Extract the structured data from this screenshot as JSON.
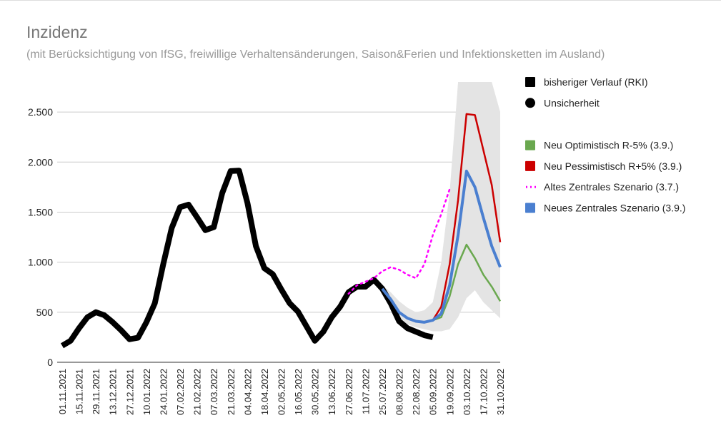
{
  "chart_data": {
    "type": "line",
    "title": "Inzidenz",
    "subtitle": "(mit Berücksichtigung von IfSG, freiwillige Verhaltensänderungen, Saison&Ferien und Infektionsketten im Ausland)",
    "categories": [
      "01.11.2021",
      null,
      "15.11.2021",
      null,
      "29.11.2021",
      null,
      "13.12.2021",
      null,
      "27.12.2021",
      null,
      "10.01.2022",
      null,
      "24.01.2022",
      null,
      "07.02.2022",
      null,
      "21.02.2022",
      null,
      "07.03.2022",
      null,
      "21.03.2022",
      null,
      "04.04.2022",
      null,
      "18.04.2022",
      null,
      "02.05.2022",
      null,
      "16.05.2022",
      null,
      "30.05.2022",
      null,
      "13.06.2022",
      null,
      "27.06.2022",
      null,
      "11.07.2022",
      null,
      "25.07.2022",
      null,
      "08.08.2022",
      null,
      "22.08.2022",
      null,
      "05.09.2022",
      null,
      "19.09.2022",
      null,
      "03.10.2022",
      null,
      "17.10.2022",
      null,
      "31.10.2022"
    ],
    "ylim": [
      0,
      2800
    ],
    "yticks": [
      0,
      500,
      {
        "value": 1000,
        "label": "1.000"
      },
      {
        "value": 1500,
        "label": "1.500"
      },
      {
        "value": 2000,
        "label": "2.000"
      },
      {
        "value": 2500,
        "label": "2.500"
      }
    ],
    "grid": true,
    "legend": "right",
    "series": [
      {
        "name": "bisheriger Verlauf (RKI)",
        "color": "#000000",
        "marker": "square",
        "width": 8,
        "values": [
          165,
          215,
          340,
          450,
          500,
          470,
          400,
          320,
          230,
          245,
          400,
          590,
          980,
          1340,
          1550,
          1575,
          1450,
          1320,
          1350,
          1690,
          1910,
          1915,
          1590,
          1160,
          940,
          880,
          730,
          590,
          505,
          360,
          215,
          305,
          450,
          555,
          700,
          755,
          755,
          825,
          735,
          590,
          410,
          340,
          305,
          270,
          250,
          null,
          null,
          null,
          null,
          null,
          null,
          null,
          null
        ]
      },
      {
        "name": "Unsicherheit",
        "type": "band",
        "color": "#e4e4e4",
        "legend_color": "#000000",
        "marker": "circle",
        "high": [
          null,
          null,
          null,
          null,
          null,
          null,
          null,
          null,
          null,
          null,
          null,
          null,
          null,
          null,
          null,
          null,
          null,
          null,
          null,
          null,
          null,
          null,
          null,
          null,
          null,
          null,
          null,
          null,
          null,
          null,
          null,
          null,
          null,
          null,
          null,
          null,
          null,
          null,
          770,
          700,
          610,
          545,
          500,
          520,
          600,
          1000,
          1700,
          2800,
          2800,
          2800,
          2800,
          2800,
          2500
        ],
        "low": [
          null,
          null,
          null,
          null,
          null,
          null,
          null,
          null,
          null,
          null,
          null,
          null,
          null,
          null,
          null,
          null,
          null,
          null,
          null,
          null,
          null,
          null,
          null,
          null,
          null,
          null,
          null,
          null,
          null,
          null,
          null,
          null,
          null,
          null,
          null,
          null,
          null,
          null,
          700,
          560,
          430,
          380,
          350,
          330,
          310,
          310,
          330,
          450,
          640,
          720,
          600,
          520,
          440
        ]
      },
      {
        "name": "Neu Optimistisch R-5% (3.9.)",
        "color": "#6aa84f",
        "marker": "square",
        "width": 2.5,
        "values": [
          null,
          null,
          null,
          null,
          null,
          null,
          null,
          null,
          null,
          null,
          null,
          null,
          null,
          null,
          null,
          null,
          null,
          null,
          null,
          null,
          null,
          null,
          null,
          null,
          null,
          null,
          null,
          null,
          null,
          null,
          null,
          null,
          null,
          null,
          null,
          null,
          null,
          null,
          null,
          null,
          null,
          null,
          null,
          null,
          420,
          450,
          660,
          980,
          1175,
          1040,
          875,
          755,
          610
        ]
      },
      {
        "name": "Neu Pessimistisch R+5% (3.9.)",
        "color": "#cc0000",
        "marker": "square",
        "width": 2.5,
        "values": [
          null,
          null,
          null,
          null,
          null,
          null,
          null,
          null,
          null,
          null,
          null,
          null,
          null,
          null,
          null,
          null,
          null,
          null,
          null,
          null,
          null,
          null,
          null,
          null,
          null,
          null,
          null,
          null,
          null,
          null,
          null,
          null,
          null,
          null,
          null,
          null,
          null,
          null,
          null,
          null,
          null,
          null,
          null,
          null,
          420,
          555,
          980,
          1620,
          2480,
          2470,
          2120,
          1770,
          1200
        ]
      },
      {
        "name": "Altes Zentrales Szenario (3.7.)",
        "color": "#ff00ff",
        "marker": "dots",
        "width": 2.5,
        "dashed": true,
        "values": [
          null,
          null,
          null,
          null,
          null,
          null,
          null,
          null,
          null,
          null,
          null,
          null,
          null,
          null,
          null,
          null,
          null,
          null,
          null,
          null,
          null,
          null,
          null,
          null,
          null,
          null,
          null,
          null,
          null,
          null,
          null,
          null,
          null,
          null,
          685,
          770,
          805,
          840,
          910,
          950,
          925,
          875,
          840,
          980,
          1270,
          1480,
          1730,
          null,
          null,
          null,
          null,
          null,
          null
        ]
      },
      {
        "name": "Neues Zentrales Szenario (3.9.)",
        "color": "#4a7fd0",
        "marker": "square",
        "width": 4,
        "values": [
          null,
          null,
          null,
          null,
          null,
          null,
          null,
          null,
          null,
          null,
          null,
          null,
          null,
          null,
          null,
          null,
          null,
          null,
          null,
          null,
          null,
          null,
          null,
          null,
          null,
          null,
          null,
          null,
          null,
          null,
          null,
          null,
          null,
          null,
          null,
          null,
          null,
          null,
          735,
          630,
          500,
          440,
          410,
          400,
          420,
          485,
          770,
          1270,
          1910,
          1750,
          1445,
          1160,
          950
        ]
      }
    ]
  }
}
